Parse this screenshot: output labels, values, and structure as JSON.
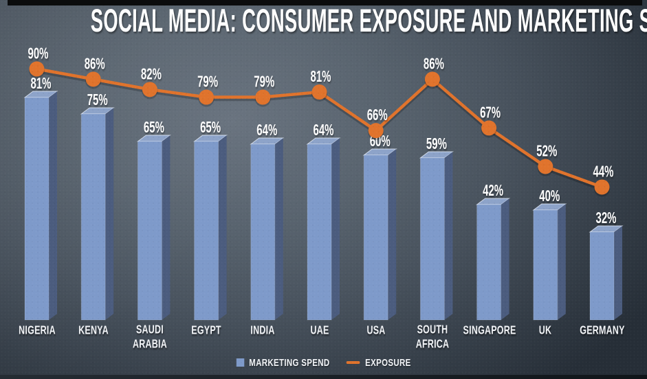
{
  "title": "SOCIAL MEDIA: CONSUMER EXPOSURE AND MARKETING SPEND",
  "legend": {
    "marketing_spend_label": "MARKETING SPEND",
    "exposure_label": "EXPOSURE"
  },
  "colors": {
    "bar_front": "#7e9aca",
    "bar_side": "#4b5c7e",
    "bar_top": "#8da3c9",
    "line": "#e0732c",
    "label_text": "#ffffff",
    "background_light": "#68727e",
    "background_dark": "#262e37",
    "edge_strip": "#0b0c0d"
  },
  "chart_data": {
    "type": "bar",
    "subtype": "combo-3d-bar-with-line",
    "title": "SOCIAL MEDIA: CONSUMER EXPOSURE AND MARKETING SPEND",
    "categories": [
      "NIGERIA",
      "KENYA",
      "SAUDI ARABIA",
      "EGYPT",
      "INDIA",
      "UAE",
      "USA",
      "SOUTH AFRICA",
      "SINGAPORE",
      "UK",
      "GERMANY"
    ],
    "series": [
      {
        "name": "MARKETING SPEND",
        "type": "bar",
        "values": [
          81,
          75,
          65,
          65,
          64,
          64,
          60,
          59,
          42,
          40,
          32
        ],
        "color": "#7e9aca",
        "color_side": "#4b5c7e",
        "color_top": "#8da3c9"
      },
      {
        "name": "EXPOSURE",
        "type": "line",
        "values": [
          90,
          86,
          82,
          79,
          79,
          81,
          66,
          86,
          67,
          52,
          44
        ],
        "color": "#e0732c"
      }
    ],
    "value_suffix": "%",
    "ylim": [
      0,
      100
    ],
    "grid": false,
    "data_labels": true,
    "legend_position": "bottom"
  }
}
